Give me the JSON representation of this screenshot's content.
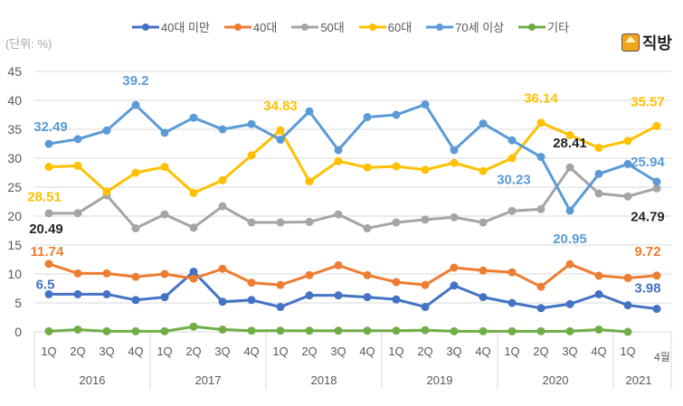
{
  "chart_data": {
    "type": "line",
    "unit_label": "(단위: %)",
    "brand": "직방",
    "ylim": [
      0,
      45
    ],
    "yticks": [
      0,
      5,
      10,
      15,
      20,
      25,
      30,
      35,
      40,
      45
    ],
    "grid": true,
    "legend_placement": "top",
    "categories": [
      "1Q",
      "2Q",
      "3Q",
      "4Q",
      "1Q",
      "2Q",
      "3Q",
      "4Q",
      "1Q",
      "2Q",
      "3Q",
      "4Q",
      "1Q",
      "2Q",
      "3Q",
      "4Q",
      "1Q",
      "2Q",
      "3Q",
      "4Q",
      "1Q",
      "4월"
    ],
    "year_groups": [
      {
        "label": "2016",
        "count": 4
      },
      {
        "label": "2017",
        "count": 4
      },
      {
        "label": "2018",
        "count": 4
      },
      {
        "label": "2019",
        "count": 4
      },
      {
        "label": "2020",
        "count": 4
      },
      {
        "label": "2021",
        "count": 2
      }
    ],
    "series": [
      {
        "name": "40대 미만",
        "color": "#4472C4",
        "values": [
          6.5,
          6.5,
          6.5,
          5.5,
          6.0,
          10.4,
          5.2,
          5.5,
          4.3,
          6.3,
          6.3,
          6.0,
          5.6,
          4.3,
          8.0,
          6.0,
          5.0,
          4.1,
          4.8,
          6.5,
          4.6,
          3.98
        ]
      },
      {
        "name": "40대",
        "color": "#ED7D31",
        "values": [
          11.74,
          10.1,
          10.1,
          9.5,
          10.0,
          9.2,
          10.9,
          8.5,
          8.1,
          9.8,
          11.5,
          9.8,
          8.6,
          8.1,
          11.1,
          10.6,
          10.3,
          7.8,
          11.7,
          9.7,
          9.3,
          9.72
        ]
      },
      {
        "name": "50대",
        "color": "#A5A5A5",
        "values": [
          20.49,
          20.5,
          23.6,
          17.9,
          20.3,
          18.0,
          21.7,
          18.9,
          18.9,
          19.0,
          20.3,
          17.9,
          18.9,
          19.4,
          19.8,
          18.9,
          20.9,
          21.2,
          28.41,
          23.9,
          23.4,
          24.79
        ]
      },
      {
        "name": "60대",
        "color": "#FFC000",
        "values": [
          28.51,
          28.7,
          24.2,
          27.5,
          28.5,
          24.0,
          26.2,
          30.5,
          34.83,
          26.0,
          29.5,
          28.4,
          28.6,
          28.0,
          29.2,
          27.8,
          30.0,
          36.14,
          34.0,
          31.8,
          33.0,
          35.57
        ]
      },
      {
        "name": "70세 이상",
        "color": "#5B9BD5",
        "values": [
          32.49,
          33.3,
          34.8,
          39.2,
          34.4,
          37.0,
          35.0,
          35.9,
          33.2,
          38.1,
          31.4,
          37.1,
          37.5,
          39.3,
          31.4,
          36.0,
          33.1,
          30.23,
          20.95,
          27.3,
          29.0,
          25.94
        ]
      },
      {
        "name": "기타",
        "color": "#70AD47",
        "values": [
          0.1,
          0.4,
          0.1,
          0.1,
          0.1,
          0.9,
          0.4,
          0.2,
          0.2,
          0.2,
          0.2,
          0.2,
          0.2,
          0.3,
          0.1,
          0.1,
          0.1,
          0.1,
          0.1,
          0.4,
          0.0,
          null
        ]
      }
    ],
    "annotations": [
      {
        "series": 4,
        "index": 0,
        "text": "32.49",
        "color": "#5B9BD5"
      },
      {
        "series": 4,
        "index": 3,
        "text": "39.2",
        "color": "#5B9BD5"
      },
      {
        "series": 3,
        "index": 0,
        "text": "28.51",
        "color": "#FFC000"
      },
      {
        "series": 2,
        "index": 0,
        "text": "20.49",
        "color": "#262626"
      },
      {
        "series": 1,
        "index": 0,
        "text": "11.74",
        "color": "#ED7D31"
      },
      {
        "series": 0,
        "index": 0,
        "text": "6.5",
        "color": "#4472C4"
      },
      {
        "series": 3,
        "index": 8,
        "text": "34.83",
        "color": "#FFC000"
      },
      {
        "series": 3,
        "index": 17,
        "text": "36.14",
        "color": "#FFC000"
      },
      {
        "series": 3,
        "index": 21,
        "text": "35.57",
        "color": "#FFC000"
      },
      {
        "series": 2,
        "index": 18,
        "text": "28.41",
        "color": "#262626"
      },
      {
        "series": 4,
        "index": 17,
        "text": "30.23",
        "color": "#5B9BD5"
      },
      {
        "series": 4,
        "index": 18,
        "text": "20.95",
        "color": "#5B9BD5"
      },
      {
        "series": 4,
        "index": 21,
        "text": "25.94",
        "color": "#5B9BD5"
      },
      {
        "series": 2,
        "index": 21,
        "text": "24.79",
        "color": "#262626"
      },
      {
        "series": 1,
        "index": 21,
        "text": "9.72",
        "color": "#ED7D31"
      },
      {
        "series": 0,
        "index": 21,
        "text": "3.98",
        "color": "#4472C4"
      }
    ]
  }
}
